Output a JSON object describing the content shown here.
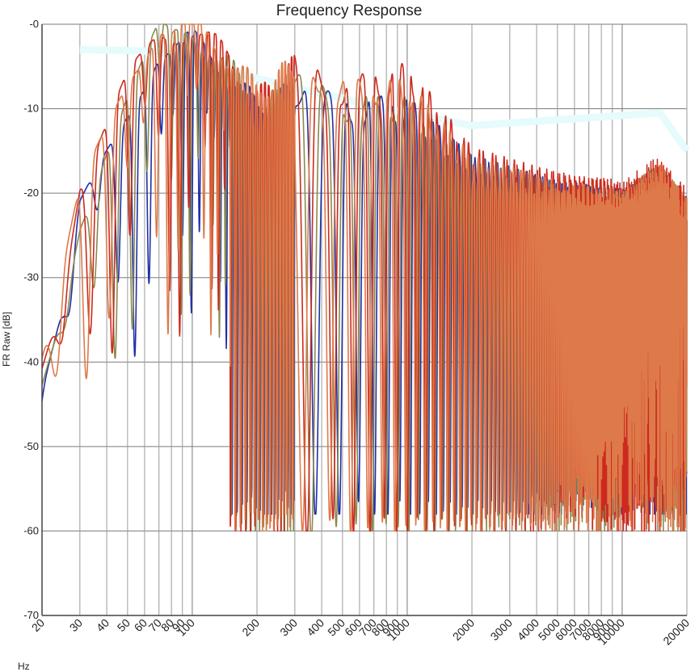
{
  "chart_data": {
    "type": "line",
    "title": "Frequency Response",
    "ylabel": "FR Raw [dB]",
    "xlabel": "Hz",
    "x_scale": "log",
    "xlim": [
      20,
      20000
    ],
    "ylim": [
      -70,
      0
    ],
    "y_ticks": [
      {
        "value": 0,
        "label": "-0"
      },
      {
        "value": -10,
        "label": "-10"
      },
      {
        "value": -20,
        "label": "-20"
      },
      {
        "value": -30,
        "label": "-30"
      },
      {
        "value": -40,
        "label": "-40"
      },
      {
        "value": -50,
        "label": "-50"
      },
      {
        "value": -60,
        "label": "-60"
      },
      {
        "value": -70,
        "label": "-70"
      }
    ],
    "x_ticks": [
      {
        "value": 20,
        "label": "20"
      },
      {
        "value": 30,
        "label": "30"
      },
      {
        "value": 40,
        "label": "40"
      },
      {
        "value": 50,
        "label": "50"
      },
      {
        "value": 60,
        "label": "60"
      },
      {
        "value": 70,
        "label": "70"
      },
      {
        "value": 80,
        "label": "80"
      },
      {
        "value": 90,
        "label": "90"
      },
      {
        "value": 100,
        "label": "100"
      },
      {
        "value": 200,
        "label": "200"
      },
      {
        "value": 300,
        "label": "300"
      },
      {
        "value": 400,
        "label": "400"
      },
      {
        "value": 500,
        "label": "500"
      },
      {
        "value": 600,
        "label": "600"
      },
      {
        "value": 700,
        "label": "700"
      },
      {
        "value": 800,
        "label": "800"
      },
      {
        "value": 900,
        "label": "900"
      },
      {
        "value": 1000,
        "label": "1000"
      },
      {
        "value": 2000,
        "label": "2000"
      },
      {
        "value": 3000,
        "label": "3000"
      },
      {
        "value": 4000,
        "label": "4000"
      },
      {
        "value": 5000,
        "label": "5000"
      },
      {
        "value": 6000,
        "label": "6000"
      },
      {
        "value": 7000,
        "label": "7000"
      },
      {
        "value": 8000,
        "label": "8000"
      },
      {
        "value": 9000,
        "label": "9000"
      },
      {
        "value": 10000,
        "label": "10000"
      },
      {
        "value": 20000,
        "label": "20000"
      }
    ],
    "grid": true,
    "legend": "none",
    "target_curve": {
      "color": "#e6fbfb",
      "x": [
        30,
        70,
        100,
        300,
        1000,
        2000,
        15000,
        20000
      ],
      "y": [
        -3,
        -3.2,
        -4.5,
        -7.5,
        -10.5,
        -12,
        -10.5,
        -15
      ]
    },
    "series": [
      {
        "color": "#1f2fa8",
        "envelope": {
          "x": [
            20,
            25,
            30,
            40,
            50,
            70,
            80,
            100,
            150,
            200,
            300,
            500,
            1000,
            2000,
            5000,
            10000,
            15000,
            20000
          ],
          "y": [
            -45,
            -35,
            -22,
            -15,
            -10,
            -3,
            -3,
            -2,
            -6,
            -10,
            -8,
            -10,
            -10,
            -17,
            -20,
            -21,
            -19,
            -22
          ]
        },
        "floor": -58
      },
      {
        "color": "#8a8a50",
        "envelope": {
          "x": [
            20,
            25,
            30,
            40,
            50,
            70,
            80,
            100,
            150,
            200,
            300,
            500,
            1000,
            2000,
            5000,
            10000,
            15000,
            20000
          ],
          "y": [
            -42,
            -33,
            -23,
            -14,
            -8,
            -1,
            -2,
            -1,
            -5,
            -11,
            -7,
            -10,
            -10,
            -17,
            -20,
            -21,
            -18,
            -22
          ]
        },
        "floor": -60
      },
      {
        "color": "#cc2a1e",
        "envelope": {
          "x": [
            20,
            25,
            30,
            40,
            50,
            70,
            80,
            100,
            150,
            200,
            300,
            500,
            1000,
            2000,
            5000,
            10000,
            15000,
            20000
          ],
          "y": [
            -40,
            -32,
            -20,
            -13,
            -7,
            -1,
            -1,
            -0.5,
            -4,
            -9,
            -5,
            -8,
            -6,
            -16,
            -19,
            -20,
            -17,
            -21
          ]
        },
        "floor": -60
      },
      {
        "color": "#de7a4a",
        "envelope": {
          "x": [
            20,
            25,
            30,
            40,
            50,
            70,
            80,
            100,
            150,
            200,
            300,
            500,
            1000,
            2000,
            5000,
            10000,
            15000,
            20000
          ],
          "y": [
            -41,
            -30,
            -20,
            -12,
            -6,
            0,
            -1,
            0,
            -4,
            -8,
            -5,
            -8,
            -8,
            -17,
            -20,
            -21,
            -18,
            -22
          ]
        },
        "floor": -60
      }
    ]
  }
}
